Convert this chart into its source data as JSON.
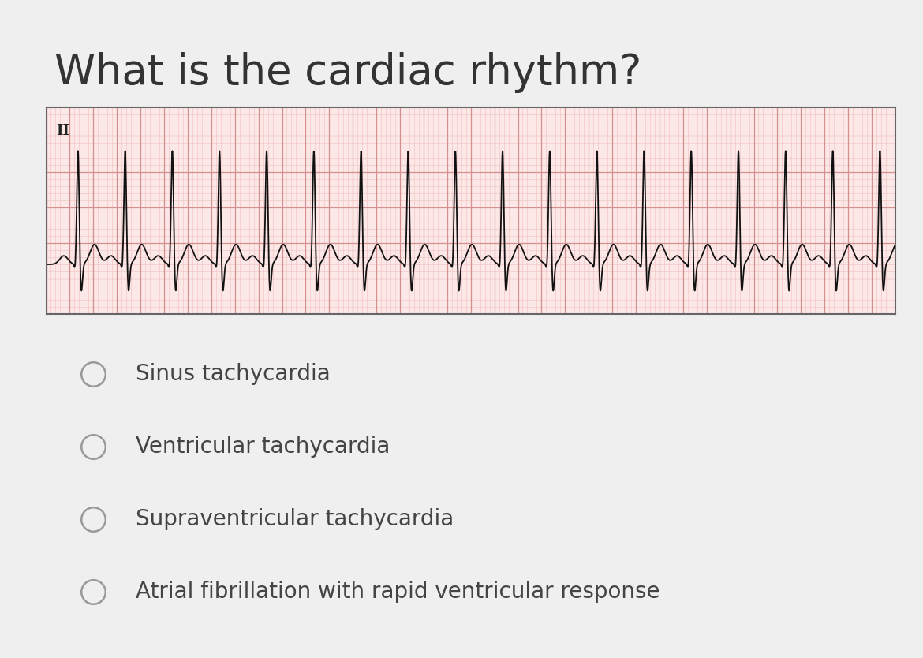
{
  "title": "What is the cardiac rhythm?",
  "title_fontsize": 38,
  "title_color": "#333333",
  "background_color": "#efefef",
  "ecg_bg_color": "#fde8e8",
  "ecg_grid_major_color": "#d49090",
  "ecg_grid_minor_color": "#f0c0c0",
  "ecg_line_color": "#111111",
  "ecg_border_color": "#666666",
  "lead_label": "II",
  "options": [
    "Sinus tachycardia",
    "Ventricular tachycardia",
    "Supraventricular tachycardia",
    "Atrial fibrillation with rapid ventricular response"
  ],
  "option_fontsize": 20,
  "option_color": "#444444",
  "radio_color": "#999999",
  "heart_rate_bpm": 150,
  "ecg_duration": 7.2,
  "y_min": -0.7,
  "y_max": 2.2
}
